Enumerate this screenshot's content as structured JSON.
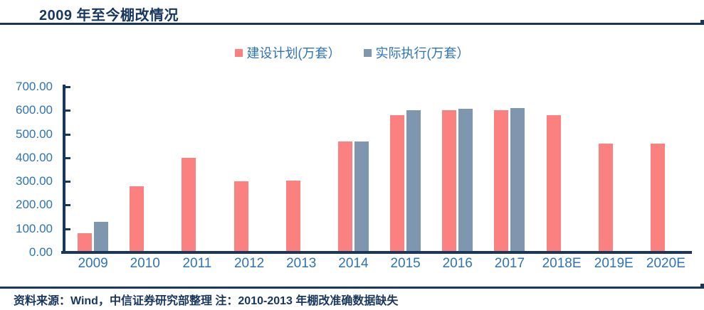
{
  "page_title": "2009 年至今棚改情况",
  "footer": {
    "source_note": "资料来源：Wind，中信证券研究部整理 注：2010-2013 年棚改准确数据缺失"
  },
  "colors": {
    "navy_rule": "#17375E",
    "axis_text_blue": "#2E74B5",
    "bar_plan_pink": "#FB8080",
    "bar_actual_gray": "#7F96AF"
  },
  "chart_data": {
    "type": "bar",
    "title": "2009 年至今棚改情况",
    "categories": [
      "2009",
      "2010",
      "2011",
      "2012",
      "2013",
      "2014",
      "2015",
      "2016",
      "2017",
      "2018E",
      "2019E",
      "2020E"
    ],
    "series": [
      {
        "name": "建设计划(万套）",
        "key": "plan",
        "color": "#FB8080",
        "values": [
          80,
          280,
          400,
          300,
          304,
          470,
          580,
          600,
          600,
          580,
          460,
          460
        ]
      },
      {
        "name": "实际执行(万套）",
        "key": "actual",
        "color": "#7F96AF",
        "values": [
          130,
          null,
          null,
          null,
          null,
          470,
          601,
          606,
          609,
          null,
          null,
          null
        ]
      }
    ],
    "xlabel": "",
    "ylabel": "",
    "ylim": [
      0,
      700
    ],
    "ytick_step": 100,
    "ytick_labels": [
      "0.00",
      "100.00",
      "200.00",
      "300.00",
      "400.00",
      "500.00",
      "600.00",
      "700.00"
    ],
    "grid": false,
    "legend_position": "top-center",
    "note": "2010-2013 年棚改准确数据缺失（实际执行无数据）"
  }
}
